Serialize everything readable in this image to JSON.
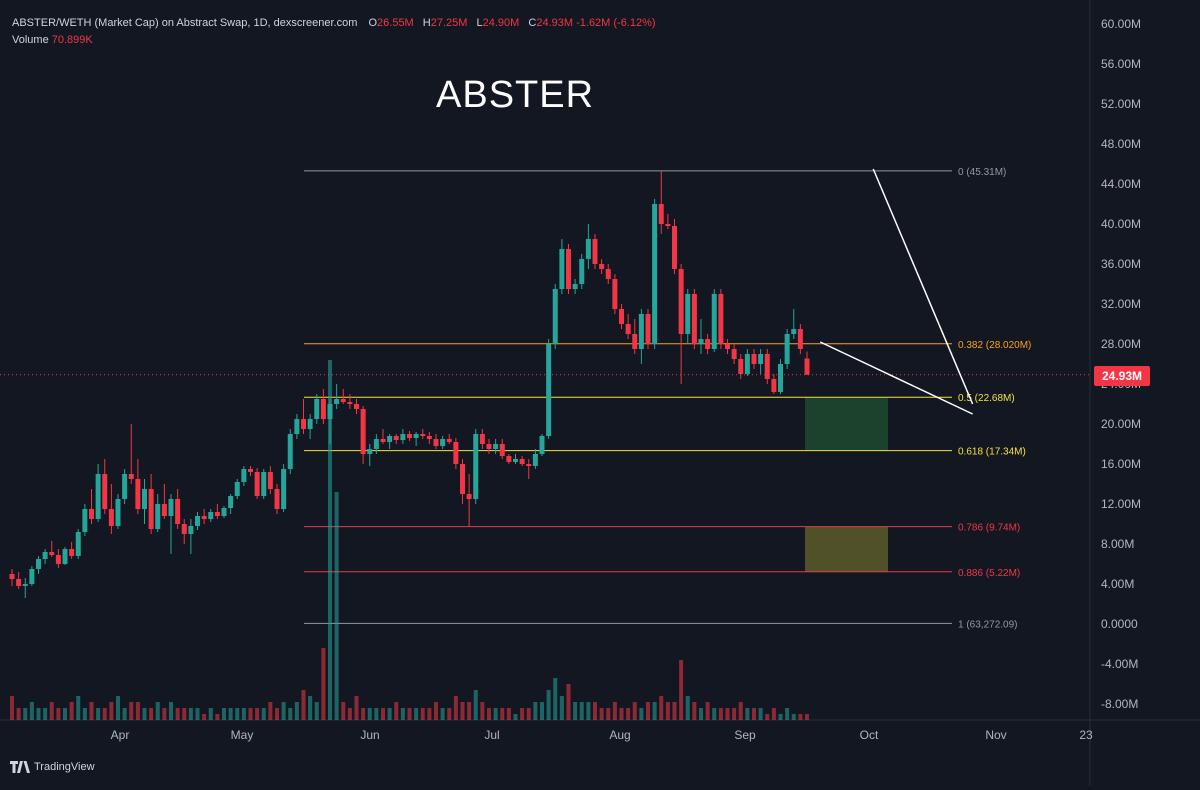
{
  "legend": {
    "title": "ABSTER/WETH (Market Cap) on Abstract Swap, 1D, dexscreener.com",
    "o_label": "O",
    "o_value": "26.55M",
    "h_label": "H",
    "h_value": "27.25M",
    "l_label": "L",
    "l_value": "24.90M",
    "c_label": "C",
    "c_value": "24.93M -1.62M (-6.12%)",
    "volume_label": "Volume",
    "volume_value": "70.899K"
  },
  "headline": "ABSTER",
  "price_tag": "24.93M",
  "brand": "TradingView",
  "colors": {
    "background": "#131722",
    "up": "#26a69a",
    "down": "#f23645",
    "fib_grey": "#9598a1",
    "fib_orange": "#f7a21b",
    "fib_yellow": "#f5e13d",
    "fib_red": "#f23645",
    "zone_green": "#1f4a30",
    "zone_olive": "#5c5a2a"
  },
  "chart_data": {
    "type": "candlestick",
    "title": "ABSTER",
    "x_ticks": [
      "Apr",
      "May",
      "Jun",
      "Jul",
      "Aug",
      "Sep",
      "Oct",
      "Nov",
      "23"
    ],
    "y_ticks": [
      "60.00M",
      "56.00M",
      "52.00M",
      "48.00M",
      "44.00M",
      "40.00M",
      "36.00M",
      "32.00M",
      "28.00M",
      "24.00M",
      "20.00M",
      "16.00M",
      "12.00M",
      "8.00M",
      "4.00M",
      "0.0000",
      "-4.00M",
      "-8.00M"
    ],
    "ylim": [
      -8,
      60
    ],
    "y_unit": "M",
    "current_price": 24.93,
    "fib_levels": [
      {
        "label": "0 (45.31M)",
        "value": 45.31,
        "color": "#9598a1"
      },
      {
        "label": "0.382 (28.020M)",
        "value": 28.02,
        "color": "#f7a21b"
      },
      {
        "label": "0.5 (22.68M)",
        "value": 22.68,
        "color": "#f5e13d"
      },
      {
        "label": "0.618 (17.34M)",
        "value": 17.34,
        "color": "#f5e13d"
      },
      {
        "label": "0.786 (9.74M)",
        "value": 9.74,
        "color": "#f23645"
      },
      {
        "label": "0.886 (5.22M)",
        "value": 5.22,
        "color": "#f23645"
      },
      {
        "label": "1 (63,272.09)",
        "value": 0.06,
        "color": "#9598a1"
      }
    ],
    "zones": [
      {
        "name": "target-zone-1",
        "from": 17.34,
        "to": 22.68,
        "color": "#1f4a30"
      },
      {
        "name": "target-zone-2",
        "from": 5.22,
        "to": 9.74,
        "color": "#5c5a2a"
      }
    ],
    "trendlines": [
      {
        "name": "upper-trendline",
        "from": [
          130,
          45.5
        ],
        "to": [
          145,
          22.0
        ]
      },
      {
        "name": "lower-trendline",
        "from": [
          122,
          28.2
        ],
        "to": [
          145,
          21.0
        ]
      }
    ],
    "candles": [
      [
        5.0,
        5.5,
        3.8,
        4.5
      ],
      [
        4.5,
        5.2,
        3.5,
        3.8
      ],
      [
        3.8,
        4.6,
        2.6,
        4.0
      ],
      [
        4.0,
        5.8,
        3.8,
        5.5
      ],
      [
        5.5,
        6.8,
        5.0,
        6.5
      ],
      [
        6.5,
        7.5,
        6.0,
        7.2
      ],
      [
        7.2,
        8.3,
        6.7,
        6.9
      ],
      [
        6.9,
        7.5,
        5.6,
        6.0
      ],
      [
        6.0,
        7.7,
        5.9,
        7.5
      ],
      [
        7.5,
        8.2,
        6.5,
        6.8
      ],
      [
        6.8,
        9.5,
        6.5,
        9.2
      ],
      [
        9.2,
        12.0,
        8.8,
        11.5
      ],
      [
        11.5,
        13.5,
        10.0,
        10.5
      ],
      [
        10.5,
        16.0,
        10.2,
        15.0
      ],
      [
        15.0,
        16.5,
        11.0,
        11.5
      ],
      [
        11.5,
        14.0,
        9.0,
        9.8
      ],
      [
        9.8,
        13.0,
        9.5,
        12.5
      ],
      [
        12.5,
        15.5,
        12.0,
        15.0
      ],
      [
        15.0,
        20.0,
        14.0,
        14.5
      ],
      [
        14.5,
        16.5,
        11.0,
        11.5
      ],
      [
        11.5,
        14.5,
        10.0,
        13.5
      ],
      [
        13.5,
        15.0,
        9.0,
        9.5
      ],
      [
        9.5,
        13.0,
        9.2,
        12.0
      ],
      [
        12.0,
        14.0,
        10.5,
        10.8
      ],
      [
        10.8,
        13.0,
        7.0,
        12.5
      ],
      [
        12.5,
        13.5,
        9.5,
        10.0
      ],
      [
        10.0,
        10.5,
        8.0,
        9.0
      ],
      [
        9.0,
        10.5,
        7.0,
        9.8
      ],
      [
        9.8,
        11.2,
        9.4,
        10.8
      ],
      [
        10.8,
        11.5,
        10.0,
        10.5
      ],
      [
        10.5,
        11.5,
        10.2,
        11.2
      ],
      [
        11.2,
        12.0,
        10.5,
        10.8
      ],
      [
        10.8,
        11.8,
        10.6,
        11.6
      ],
      [
        11.6,
        13.0,
        11.0,
        12.8
      ],
      [
        12.8,
        14.5,
        12.5,
        14.2
      ],
      [
        14.2,
        15.8,
        13.8,
        15.5
      ],
      [
        15.5,
        15.8,
        14.8,
        15.2
      ],
      [
        15.2,
        15.6,
        12.5,
        12.8
      ],
      [
        12.8,
        15.5,
        12.5,
        15.2
      ],
      [
        15.2,
        15.8,
        13.0,
        13.5
      ],
      [
        13.5,
        14.0,
        11.0,
        11.5
      ],
      [
        11.5,
        16.0,
        11.2,
        15.5
      ],
      [
        15.5,
        19.5,
        15.0,
        19.0
      ],
      [
        19.0,
        21.0,
        18.5,
        20.5
      ],
      [
        20.5,
        22.5,
        19.0,
        19.5
      ],
      [
        19.5,
        21.0,
        18.5,
        20.5
      ],
      [
        20.5,
        23.0,
        20.0,
        22.5
      ],
      [
        22.5,
        23.5,
        20.0,
        20.5
      ],
      [
        20.5,
        22.5,
        18.0,
        22.0
      ],
      [
        22.0,
        24.0,
        21.5,
        22.5
      ],
      [
        22.5,
        23.5,
        22.0,
        22.2
      ],
      [
        22.2,
        23.0,
        21.5,
        22.0
      ],
      [
        22.0,
        22.5,
        21.0,
        21.5
      ],
      [
        21.5,
        21.8,
        16.0,
        17.0
      ],
      [
        17.0,
        18.0,
        15.8,
        17.5
      ],
      [
        17.5,
        19.0,
        17.0,
        18.5
      ],
      [
        18.5,
        19.5,
        18.0,
        18.2
      ],
      [
        18.2,
        19.0,
        17.5,
        18.8
      ],
      [
        18.8,
        19.0,
        18.0,
        18.4
      ],
      [
        18.4,
        19.5,
        18.0,
        19.0
      ],
      [
        19.0,
        19.3,
        18.3,
        18.6
      ],
      [
        18.6,
        19.2,
        17.8,
        19.0
      ],
      [
        19.0,
        19.5,
        18.5,
        18.8
      ],
      [
        18.8,
        19.2,
        18.0,
        18.5
      ],
      [
        18.5,
        19.0,
        17.5,
        17.8
      ],
      [
        17.8,
        18.8,
        17.5,
        18.5
      ],
      [
        18.5,
        19.0,
        18.0,
        18.2
      ],
      [
        18.2,
        18.6,
        15.5,
        16.0
      ],
      [
        16.0,
        16.5,
        12.0,
        13.0
      ],
      [
        13.0,
        15.0,
        9.8,
        12.5
      ],
      [
        12.5,
        19.5,
        12.0,
        19.0
      ],
      [
        19.0,
        19.5,
        17.5,
        18.0
      ],
      [
        18.0,
        18.5,
        17.0,
        17.5
      ],
      [
        17.5,
        18.5,
        17.0,
        18.0
      ],
      [
        18.0,
        18.5,
        16.5,
        16.8
      ],
      [
        16.8,
        17.0,
        16.0,
        16.2
      ],
      [
        16.2,
        17.0,
        16.0,
        16.5
      ],
      [
        16.5,
        16.8,
        15.8,
        16.0
      ],
      [
        16.0,
        16.5,
        14.5,
        15.8
      ],
      [
        15.8,
        17.5,
        15.5,
        17.0
      ],
      [
        17.0,
        19.0,
        16.8,
        18.8
      ],
      [
        18.8,
        28.5,
        18.5,
        28.0
      ],
      [
        28.0,
        34.0,
        27.5,
        33.5
      ],
      [
        33.5,
        38.5,
        33.0,
        37.5
      ],
      [
        37.5,
        38.0,
        33.0,
        33.5
      ],
      [
        33.5,
        34.5,
        33.0,
        34.0
      ],
      [
        34.0,
        37.0,
        33.5,
        36.5
      ],
      [
        36.5,
        40.0,
        35.5,
        38.5
      ],
      [
        38.5,
        39.0,
        35.5,
        36.0
      ],
      [
        36.0,
        36.5,
        35.0,
        35.5
      ],
      [
        35.5,
        36.0,
        34.0,
        34.5
      ],
      [
        34.5,
        35.0,
        31.0,
        31.5
      ],
      [
        31.5,
        32.0,
        29.5,
        30.0
      ],
      [
        30.0,
        31.0,
        28.5,
        29.0
      ],
      [
        29.0,
        30.5,
        27.0,
        27.5
      ],
      [
        27.5,
        31.5,
        26.0,
        31.0
      ],
      [
        31.0,
        31.5,
        27.5,
        28.0
      ],
      [
        28.0,
        42.5,
        27.5,
        42.0
      ],
      [
        42.0,
        45.3,
        39.0,
        40.0
      ],
      [
        40.0,
        41.0,
        39.5,
        39.8
      ],
      [
        39.8,
        40.5,
        35.0,
        35.5
      ],
      [
        35.5,
        36.0,
        24.0,
        29.0
      ],
      [
        29.0,
        33.5,
        28.0,
        33.0
      ],
      [
        33.0,
        33.5,
        27.5,
        28.0
      ],
      [
        28.0,
        30.5,
        27.0,
        28.5
      ],
      [
        28.5,
        29.0,
        27.0,
        27.5
      ],
      [
        27.5,
        33.5,
        27.2,
        33.0
      ],
      [
        33.0,
        33.5,
        27.5,
        28.0
      ],
      [
        28.0,
        28.5,
        27.0,
        27.5
      ],
      [
        27.5,
        28.0,
        26.0,
        26.5
      ],
      [
        26.5,
        27.0,
        24.5,
        25.0
      ],
      [
        25.0,
        27.5,
        24.8,
        27.0
      ],
      [
        27.0,
        27.5,
        25.5,
        26.0
      ],
      [
        26.0,
        27.5,
        25.0,
        27.0
      ],
      [
        27.0,
        27.5,
        24.0,
        24.5
      ],
      [
        24.5,
        25.0,
        23.0,
        23.2
      ],
      [
        23.2,
        26.5,
        23.0,
        26.0
      ],
      [
        26.0,
        29.5,
        25.5,
        29.0
      ],
      [
        29.0,
        31.5,
        28.5,
        29.5
      ],
      [
        29.5,
        30.0,
        27.0,
        27.5
      ],
      [
        26.55,
        27.25,
        24.9,
        24.93
      ]
    ],
    "volume": [
      4,
      2,
      2,
      3,
      2,
      2,
      3,
      2,
      2,
      3,
      4,
      2,
      3,
      2,
      2,
      3,
      4,
      2,
      3,
      3,
      2,
      2,
      3,
      2,
      3,
      2,
      2,
      2,
      2,
      1,
      2,
      1,
      2,
      2,
      2,
      2,
      2,
      2,
      2,
      3,
      2,
      3,
      2,
      3,
      5,
      4,
      3,
      3,
      4,
      5,
      3,
      2,
      4,
      2,
      2,
      2,
      2,
      2,
      3,
      2,
      2,
      2,
      2,
      2,
      3,
      2,
      2,
      4,
      3,
      3,
      5,
      3,
      2,
      2,
      2,
      2,
      1,
      2,
      2,
      3,
      3,
      5,
      7,
      4,
      6,
      3,
      3,
      3,
      3,
      2,
      2,
      3,
      2,
      2,
      3,
      2,
      3,
      3,
      4,
      3,
      3,
      6,
      4,
      3,
      2,
      3,
      2,
      2,
      2,
      2,
      3,
      2,
      2,
      2,
      1,
      2,
      1,
      2,
      1,
      1,
      1
    ],
    "volume_spikes": [
      {
        "index": 48,
        "value": 60
      },
      {
        "index": 47,
        "value": 12
      },
      {
        "index": 49,
        "value": 38
      },
      {
        "index": 101,
        "value": 10
      }
    ]
  }
}
